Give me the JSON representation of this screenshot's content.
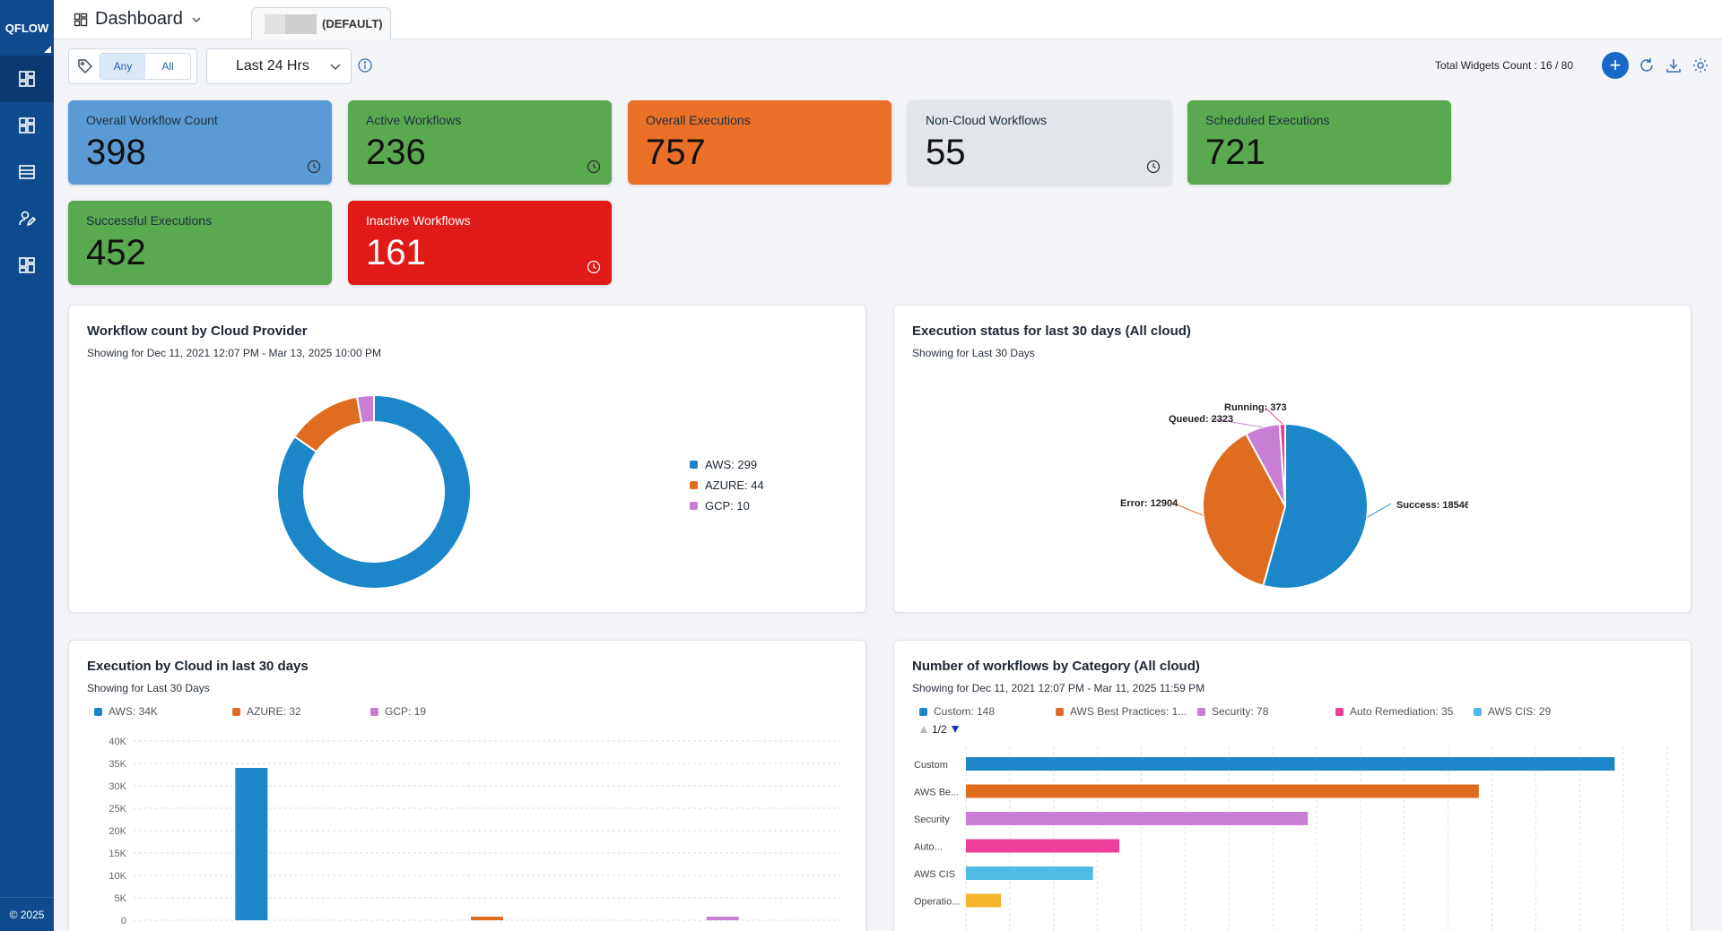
{
  "app": {
    "brand": "QFLOW",
    "copyright": "© 2025"
  },
  "sidebar": {
    "items": [
      {
        "icon": "dashboard-icon",
        "active": true
      },
      {
        "icon": "layout-icon",
        "active": false
      },
      {
        "icon": "server-icon",
        "active": false
      },
      {
        "icon": "user-edit-icon",
        "active": false
      },
      {
        "icon": "widgets-icon",
        "active": false
      }
    ]
  },
  "header": {
    "title": "Dashboard",
    "tab_label": "(DEFAULT)"
  },
  "filters": {
    "tag_any": "Any",
    "tag_all": "All",
    "time_range": "Last 24 Hrs",
    "widget_count": "Total Widgets Count : 16 / 80",
    "add_label": "+"
  },
  "kpis": [
    {
      "label": "Overall Workflow Count",
      "value": "398",
      "color": "#5b9bd5",
      "clock": true
    },
    {
      "label": "Active Workflows",
      "value": "236",
      "color": "#5aa84f",
      "clock": true
    },
    {
      "label": "Overall Executions",
      "value": "757",
      "color": "#ea7028",
      "clock": false
    },
    {
      "label": "Non-Cloud Workflows",
      "value": "55",
      "color": "#e2e5e9",
      "clock": true
    },
    {
      "label": "Scheduled Executions",
      "value": "721",
      "color": "#5aa84f",
      "clock": false
    },
    {
      "label": "Successful Executions",
      "value": "452",
      "color": "#5aa84f",
      "clock": false
    },
    {
      "label": "Inactive Workflows",
      "value": "161",
      "color": "#e01a16",
      "clock": true
    }
  ],
  "panels": {
    "cloud_provider": {
      "title": "Workflow count by Cloud Provider",
      "subtitle": "Showing for Dec 11, 2021 12:07 PM - Mar 13, 2025 10:00 PM",
      "legend": [
        "AWS: 299",
        "AZURE: 44",
        "GCP: 10"
      ]
    },
    "exec_status": {
      "title": "Execution status for last 30 days (All cloud)",
      "subtitle": "Showing for Last 30 Days",
      "labels": [
        "Success: 18546",
        "Error: 12904",
        "Queued: 2323",
        "Running: 373"
      ]
    },
    "exec_by_cloud": {
      "title": "Execution by Cloud in last 30 days",
      "subtitle": "Showing for Last 30 Days",
      "legend": [
        "AWS: 34K",
        "AZURE: 32",
        "GCP: 19"
      ],
      "yticks": [
        "40K",
        "35K",
        "30K",
        "25K",
        "20K",
        "15K",
        "10K",
        "5K",
        "0"
      ]
    },
    "by_category": {
      "title": "Number of workflows by Category (All cloud)",
      "subtitle": "Showing for Dec 11, 2021 12:07 PM - Mar 11, 2025 11:59 PM",
      "legend": [
        "Custom: 148",
        "AWS Best Practices: 1...",
        "Security: 78",
        "Auto Remediation: 35",
        "AWS CIS: 29"
      ],
      "pager": "1/2",
      "row_labels": [
        "Custom",
        "AWS Be...",
        "Security",
        "Auto...",
        "AWS CIS",
        "Operatio..."
      ]
    }
  },
  "chart_data": [
    {
      "type": "pie",
      "title": "Workflow count by Cloud Provider",
      "categories": [
        "AWS",
        "AZURE",
        "GCP"
      ],
      "values": [
        299,
        44,
        10
      ],
      "colors": [
        "#1b87c9",
        "#e06c1f",
        "#c87fd3"
      ]
    },
    {
      "type": "pie",
      "title": "Execution status for last 30 days (All cloud)",
      "categories": [
        "Success",
        "Error",
        "Queued",
        "Running"
      ],
      "values": [
        18546,
        12904,
        2323,
        373
      ],
      "colors": [
        "#1b87c9",
        "#e06c1f",
        "#c87fd3",
        "#e5409a"
      ]
    },
    {
      "type": "bar",
      "title": "Execution by Cloud in last 30 days",
      "categories": [
        "AWS",
        "AZURE",
        "GCP"
      ],
      "values": [
        34000,
        32,
        19
      ],
      "ylim": [
        0,
        40000
      ],
      "colors": [
        "#1b87c9",
        "#e06c1f",
        "#c87fd3"
      ]
    },
    {
      "type": "bar",
      "orientation": "horizontal",
      "title": "Number of workflows by Category (All cloud)",
      "categories": [
        "Custom",
        "AWS Best Practices",
        "Security",
        "Auto Remediation",
        "AWS CIS",
        "Operatio..."
      ],
      "values": [
        148,
        117,
        78,
        35,
        29,
        8
      ],
      "xlim": [
        0,
        160
      ],
      "colors": [
        "#1b87c9",
        "#e06c1f",
        "#c87fd3",
        "#ee3e97",
        "#4ebde6",
        "#f5b52e"
      ]
    }
  ]
}
